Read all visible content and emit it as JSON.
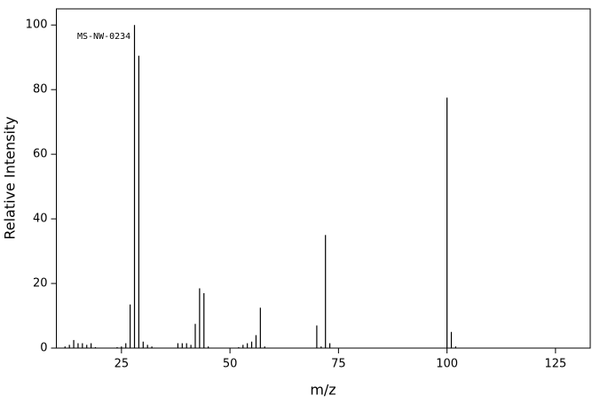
{
  "chart_data": {
    "type": "bar",
    "annotation": "MS-NW-0234",
    "x_label": "m/z",
    "y_label": "Relative Intensity",
    "color": "#000000",
    "x": [
      12,
      13,
      14,
      15,
      16,
      17,
      18,
      19,
      24,
      25,
      26,
      27,
      28,
      29,
      30,
      31,
      32,
      38,
      39,
      40,
      41,
      42,
      43,
      44,
      45,
      52,
      53,
      54,
      55,
      56,
      57,
      58,
      70,
      71,
      72,
      73,
      100,
      101,
      102
    ],
    "values": [
      0.5,
      1,
      2.5,
      1.5,
      1.5,
      1,
      1.5,
      0.3,
      0.3,
      0.5,
      1.5,
      13.5,
      100,
      90.5,
      2,
      1,
      0.5,
      1.5,
      1.5,
      1.5,
      1,
      7.5,
      18.5,
      17,
      0.5,
      0.3,
      1,
      1.5,
      2,
      4,
      12.5,
      0.5,
      7,
      0.5,
      35,
      1.5,
      77.5,
      5,
      0.5
    ],
    "xlim": [
      10,
      133
    ],
    "ylim": [
      0,
      105
    ],
    "xticks": [
      25,
      50,
      75,
      100,
      125
    ],
    "yticks": [
      0,
      20,
      40,
      60,
      80,
      100
    ]
  }
}
